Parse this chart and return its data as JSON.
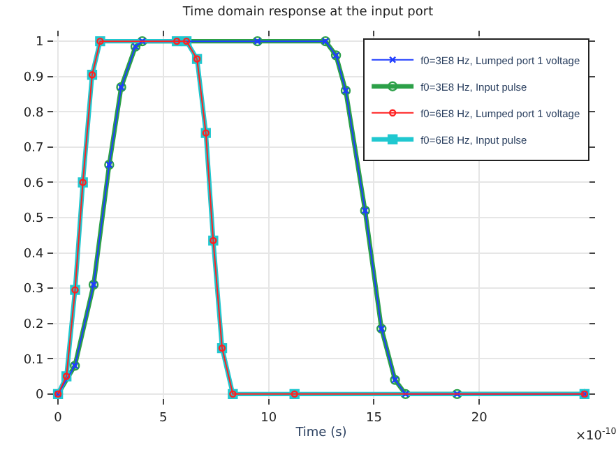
{
  "chart_data": {
    "type": "line",
    "title": "Time domain response at the input port",
    "xlabel": "Time (s)",
    "xlim": [
      -0.5,
      25.5
    ],
    "xticks": [
      0,
      5,
      10,
      15,
      20
    ],
    "ylim": [
      -0.03,
      1.03
    ],
    "yticks": [
      0,
      0.1,
      0.2,
      0.3,
      0.4,
      0.5,
      0.6,
      0.7,
      0.8,
      0.9,
      1
    ],
    "grid": true,
    "legend": "top right",
    "line_style": "solid",
    "annotations": [
      "×10$^{-10}$"
    ],
    "series": [
      {
        "name": "f0=3E8 Hz, Lumped port 1 voltage",
        "color": "#1f3cff",
        "marker": "cross",
        "x": [
          0,
          0.8,
          1.69,
          2.43,
          3.0,
          3.68,
          4.0,
          9.47,
          12.7,
          13.2,
          13.66,
          14.58,
          15.36,
          16.0,
          16.5,
          18.95,
          25
        ],
        "values": [
          0,
          0.08,
          0.31,
          0.65,
          0.87,
          0.985,
          1,
          1,
          1,
          0.96,
          0.86,
          0.52,
          0.185,
          0.04,
          0,
          0,
          0
        ]
      },
      {
        "name": "f0=3E8 Hz, Input pulse",
        "color": "#2ca048",
        "marker": "circle",
        "x": [
          0,
          0.8,
          1.69,
          2.43,
          3.0,
          3.68,
          4.0,
          9.47,
          12.7,
          13.2,
          13.66,
          14.58,
          15.36,
          16.0,
          16.5,
          18.95,
          25
        ],
        "values": [
          0,
          0.08,
          0.31,
          0.65,
          0.87,
          0.985,
          1,
          1,
          1,
          0.96,
          0.86,
          0.52,
          0.185,
          0.04,
          0,
          0,
          0
        ]
      },
      {
        "name": "f0=6E8 Hz, Lumped port 1 voltage",
        "color": "#ff2020",
        "marker": "circle",
        "x": [
          0,
          0.4,
          0.81,
          1.18,
          1.62,
          2.0,
          5.64,
          6.1,
          6.6,
          7.02,
          7.37,
          7.79,
          8.3,
          11.23,
          25
        ],
        "values": [
          0,
          0.05,
          0.295,
          0.6,
          0.905,
          1,
          1,
          1,
          0.95,
          0.74,
          0.435,
          0.13,
          0,
          0,
          0
        ]
      },
      {
        "name": "f0=6E8 Hz, Input pulse",
        "color": "#20c8d0",
        "marker": "square",
        "x": [
          0,
          0.4,
          0.81,
          1.18,
          1.62,
          2.0,
          5.64,
          6.1,
          6.6,
          7.02,
          7.37,
          7.79,
          8.3,
          11.23,
          25
        ],
        "values": [
          0,
          0.05,
          0.295,
          0.6,
          0.905,
          1,
          1,
          1,
          0.95,
          0.74,
          0.435,
          0.13,
          0,
          0,
          0
        ]
      }
    ]
  }
}
